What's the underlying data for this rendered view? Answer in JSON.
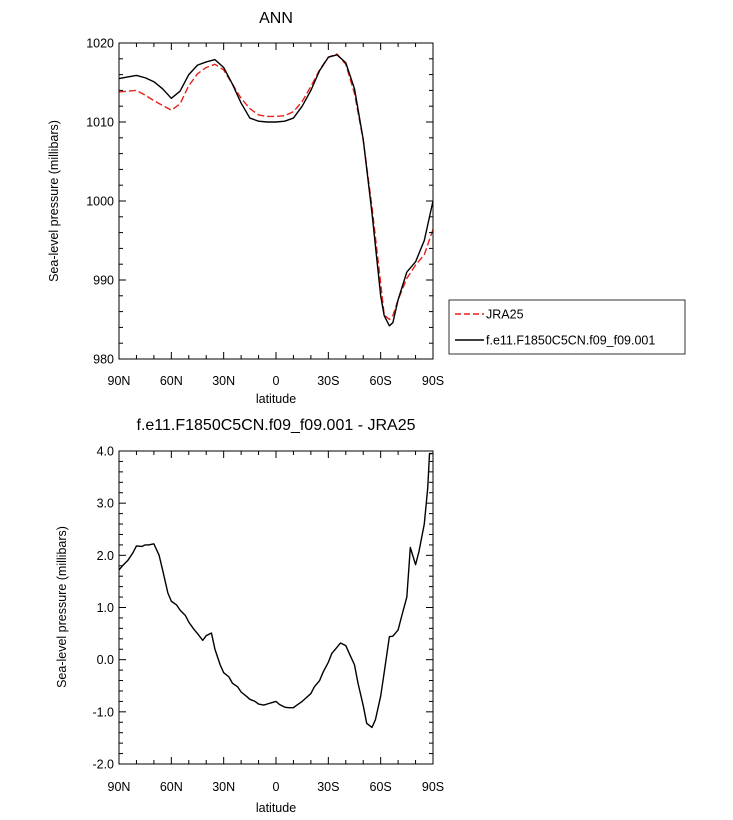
{
  "chart_data": [
    {
      "type": "line",
      "title": "ANN",
      "xlabel": "latitude",
      "ylabel": "Sea-level pressure (millibars)",
      "xlim": [
        90,
        -90
      ],
      "ylim": [
        980,
        1020
      ],
      "x_ticks": [
        90,
        60,
        30,
        0,
        -30,
        -60,
        -90
      ],
      "x_tick_labels": [
        "90N",
        "60N",
        "30N",
        "0",
        "30S",
        "60S",
        "90S"
      ],
      "y_ticks": [
        980,
        990,
        1000,
        1010,
        1020
      ],
      "y_tick_labels": [
        "980",
        "990",
        "1000",
        "1010",
        "1020"
      ],
      "legend_position": "right",
      "series": [
        {
          "name": "JRA25",
          "color": "#e8211a",
          "dash": "dashed",
          "x": [
            90,
            85,
            80,
            75,
            70,
            65,
            60,
            55,
            50,
            45,
            40,
            35,
            30,
            25,
            20,
            15,
            10,
            5,
            0,
            -5,
            -10,
            -15,
            -20,
            -25,
            -30,
            -35,
            -40,
            -45,
            -50,
            -55,
            -60,
            -62,
            -65,
            -67,
            -70,
            -75,
            -80,
            -85,
            -90
          ],
          "values": [
            1013.8,
            1013.9,
            1014,
            1013.4,
            1012.7,
            1012.1,
            1011.5,
            1012.3,
            1014.6,
            1016.1,
            1016.9,
            1017.3,
            1016.6,
            1014.8,
            1013,
            1011.7,
            1010.9,
            1010.7,
            1010.7,
            1010.8,
            1011.3,
            1012.6,
            1014.5,
            1016.6,
            1018.2,
            1018.6,
            1017.3,
            1013.6,
            1007.7,
            999.3,
            989.6,
            985.6,
            985,
            985.5,
            987.5,
            990.2,
            991.9,
            993.2,
            996.4
          ]
        },
        {
          "name": "f.e11.F1850C5CN.f09_f09.001",
          "color": "#000000",
          "dash": "solid",
          "x": [
            90,
            85,
            80,
            75,
            70,
            65,
            60,
            55,
            50,
            45,
            40,
            35,
            30,
            25,
            20,
            15,
            10,
            5,
            0,
            -5,
            -10,
            -15,
            -20,
            -25,
            -30,
            -35,
            -40,
            -45,
            -50,
            -55,
            -60,
            -62,
            -65,
            -67,
            -70,
            -75,
            -80,
            -85,
            -90
          ],
          "values": [
            1015.5,
            1015.7,
            1015.9,
            1015.6,
            1015.1,
            1014.2,
            1013,
            1013.9,
            1016,
            1017.2,
            1017.6,
            1017.9,
            1016.9,
            1014.8,
            1012.4,
            1010.5,
            1010.1,
            1010,
            1010,
            1010.1,
            1010.5,
            1012,
            1014,
            1016.5,
            1018.2,
            1018.5,
            1017.5,
            1014.2,
            1007.8,
            998.5,
            988,
            985.5,
            984.2,
            984.6,
            987.5,
            991,
            992.3,
            995,
            1000
          ]
        }
      ]
    },
    {
      "type": "line",
      "title": "f.e11.F1850C5CN.f09_f09.001 - JRA25",
      "xlabel": "latitude",
      "ylabel": "Sea-level pressure (millibars)",
      "xlim": [
        90,
        -90
      ],
      "ylim": [
        -2.0,
        4.0
      ],
      "x_ticks": [
        90,
        60,
        30,
        0,
        -30,
        -60,
        -90
      ],
      "x_tick_labels": [
        "90N",
        "60N",
        "30N",
        "0",
        "30S",
        "60S",
        "90S"
      ],
      "y_ticks": [
        -2.0,
        -1.0,
        0.0,
        1.0,
        2.0,
        3.0,
        4.0
      ],
      "y_tick_labels": [
        "-2.0",
        "-1.0",
        "0.0",
        "1.0",
        "2.0",
        "3.0",
        "4.0"
      ],
      "series": [
        {
          "color": "#000000",
          "dash": "solid",
          "x": [
            90,
            88,
            85,
            82,
            80,
            77,
            75,
            73,
            70,
            67,
            65,
            62,
            60,
            57,
            55,
            52,
            50,
            47,
            45,
            42,
            40,
            37,
            35,
            32,
            30,
            27,
            25,
            22,
            20,
            17,
            15,
            12,
            10,
            7,
            5,
            2,
            0,
            -2,
            -5,
            -7,
            -10,
            -12,
            -15,
            -17,
            -20,
            -22,
            -25,
            -27,
            -30,
            -32,
            -35,
            -37,
            -40,
            -42,
            -45,
            -47,
            -50,
            -52,
            -55,
            -57,
            -60,
            -62,
            -65,
            -67,
            -70,
            -72,
            -75,
            -77,
            -80,
            -82,
            -85,
            -87,
            -88,
            -90
          ],
          "values": [
            1.72,
            1.8,
            1.9,
            2.05,
            2.18,
            2.17,
            2.2,
            2.2,
            2.22,
            2.0,
            1.72,
            1.28,
            1.12,
            1.05,
            0.95,
            0.85,
            0.72,
            0.58,
            0.5,
            0.37,
            0.46,
            0.51,
            0.2,
            -0.1,
            -0.25,
            -0.33,
            -0.45,
            -0.52,
            -0.62,
            -0.7,
            -0.76,
            -0.8,
            -0.85,
            -0.87,
            -0.85,
            -0.82,
            -0.8,
            -0.86,
            -0.91,
            -0.92,
            -0.92,
            -0.87,
            -0.8,
            -0.74,
            -0.65,
            -0.52,
            -0.4,
            -0.24,
            -0.05,
            0.12,
            0.24,
            0.32,
            0.27,
            0.12,
            -0.1,
            -0.45,
            -0.88,
            -1.22,
            -1.3,
            -1.15,
            -0.7,
            -0.25,
            0.44,
            0.45,
            0.57,
            0.83,
            1.2,
            2.15,
            1.82,
            2.08,
            2.6,
            3.3,
            3.95,
            3.95
          ]
        }
      ]
    }
  ]
}
